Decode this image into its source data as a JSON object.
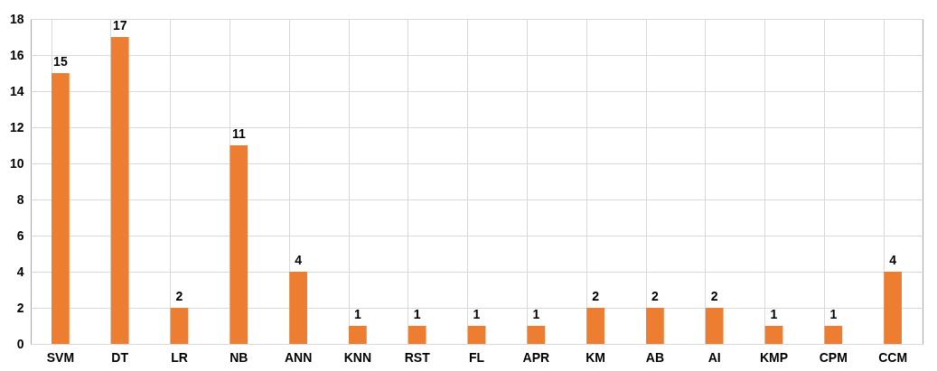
{
  "chart_data": {
    "type": "bar",
    "categories": [
      "SVM",
      "DT",
      "LR",
      "NB",
      "ANN",
      "KNN",
      "RST",
      "FL",
      "APR",
      "KM",
      "AB",
      "AI",
      "KMP",
      "CPM",
      "CCM"
    ],
    "values": [
      15,
      17,
      2,
      11,
      4,
      1,
      1,
      1,
      1,
      2,
      2,
      2,
      1,
      1,
      4
    ],
    "color": "#ed7d31",
    "ylim": [
      0,
      18
    ],
    "yticks": [
      0,
      2,
      4,
      6,
      8,
      10,
      12,
      14,
      16,
      18
    ],
    "grid": true,
    "data_labels": true
  }
}
